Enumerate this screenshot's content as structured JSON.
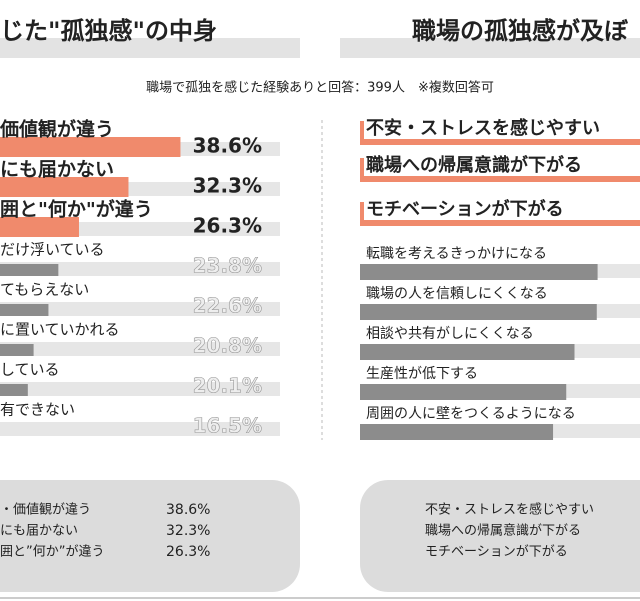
{
  "subtitle": "職場で孤独を感じた経験ありと回答：399人　※複数回答可",
  "chart_data": [
    {
      "type": "bar",
      "title": "じた\"孤独感\"の中身",
      "categories": [
        "価値観が違う",
        "にも届かない",
        "囲と\"何か\"が違う",
        "だけ浮いている",
        "てもらえない",
        "に置いていかれる",
        "している",
        "有できない"
      ],
      "values": [
        38.6,
        32.3,
        26.3,
        23.8,
        22.6,
        20.8,
        20.1,
        16.5
      ],
      "value_labels": [
        "38.6%",
        "32.3%",
        "26.3%",
        "23.8%",
        "22.6%",
        "20.8%",
        "20.1%",
        "16.5%"
      ],
      "colors": [
        "#f08a6c",
        "#f08a6c",
        "#f08a6c",
        "#8c8c8c",
        "#8c8c8c",
        "#8c8c8c",
        "#8c8c8c",
        "#8c8c8c"
      ]
    },
    {
      "type": "bar",
      "title": "職場の孤独感が及ぼ",
      "categories": [
        "不安・ストレスを感じやすい",
        "職場への帰属意識が下がる",
        "モチベーションが下がる",
        "転職を考えるきっかけになる",
        "職場の人を信頼しにくくなる",
        "相談や共有がしにくくなる",
        "生産性が低下する",
        "周囲の人に壁をつくるようになる"
      ],
      "values": [
        38,
        36,
        34,
        28.8,
        28.7,
        26,
        25,
        23.4
      ],
      "colors": [
        "#f08a6c",
        "#f08a6c",
        "#f08a6c",
        "#8c8c8c",
        "#8c8c8c",
        "#8c8c8c",
        "#8c8c8c",
        "#8c8c8c"
      ]
    }
  ],
  "summary": {
    "left": [
      {
        "label": "・価値観が違う",
        "value": "38.6%"
      },
      {
        "label": "にも届かない",
        "value": "32.3%"
      },
      {
        "label": "囲と”何か”が違う",
        "value": "26.3%"
      }
    ],
    "right": [
      "不安・ストレスを感じやすい",
      "職場への帰属意識が下がる",
      "モチベーションが下がる"
    ]
  }
}
